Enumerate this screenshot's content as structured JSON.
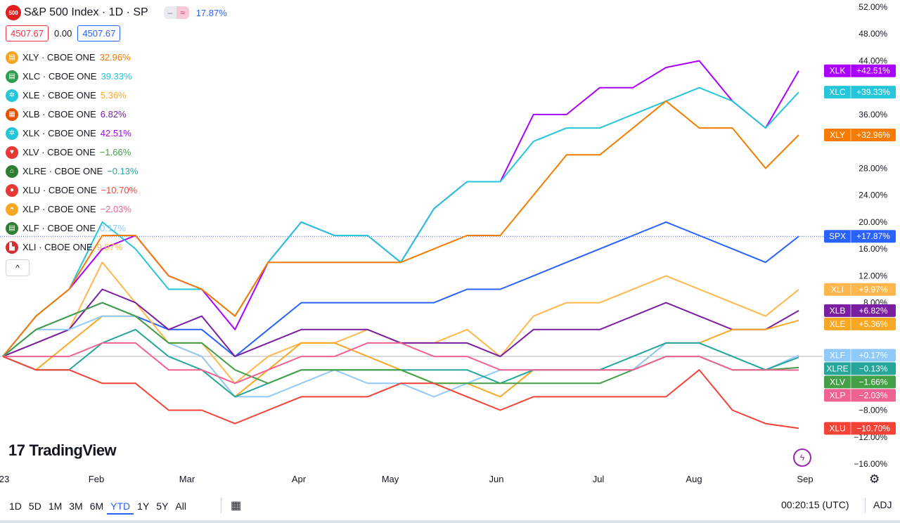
{
  "header": {
    "logo_text": "500",
    "title": "S&P 500 Index · 1D · SP",
    "toggle_a": "‒",
    "toggle_b": "≈",
    "change_pct": "17.87%"
  },
  "price_row": {
    "bid": "4507.67",
    "spread": "0.00",
    "ask": "4507.67"
  },
  "legend": [
    {
      "symbol": "XLY · CBOE ONE",
      "value": "32.96%",
      "color": "#f57c00",
      "icon": "cart-icon"
    },
    {
      "symbol": "XLC · CBOE ONE",
      "value": "39.33%",
      "color": "#26c6da",
      "icon": "chat-icon"
    },
    {
      "symbol": "XLE · CBOE ONE",
      "value": "5.36%",
      "color": "#f9a825",
      "icon": "flame-icon"
    },
    {
      "symbol": "XLB · CBOE ONE",
      "value": "6.82%",
      "color": "#7b1fa2",
      "icon": "cube-icon"
    },
    {
      "symbol": "XLK · CBOE ONE",
      "value": "42.51%",
      "color": "#aa00ff",
      "icon": "chip-icon"
    },
    {
      "symbol": "XLV · CBOE ONE",
      "value": "−1.66%",
      "color": "#43a047",
      "icon": "heart-icon"
    },
    {
      "symbol": "XLRE · CBOE ONE",
      "value": "−0.13%",
      "color": "#26a69a",
      "icon": "house-icon"
    },
    {
      "symbol": "XLU · CBOE ONE",
      "value": "−10.70%",
      "color": "#f44336",
      "icon": "bulb-icon"
    },
    {
      "symbol": "XLP · CBOE ONE",
      "value": "−2.03%",
      "color": "#f06292",
      "icon": "basket-icon"
    },
    {
      "symbol": "XLF · CBOE ONE",
      "value": "0.17%",
      "color": "#90caf9",
      "icon": "bank-icon"
    },
    {
      "symbol": "XLI · CBOE ONE",
      "value": "9.97%",
      "color": "#ffb74d",
      "icon": "factory-icon"
    }
  ],
  "legend_icon_colors": [
    "#f5a623",
    "#2e9d4d",
    "#26c6da",
    "#e65100",
    "#26c6da",
    "#e53935",
    "#2e7d32",
    "#e53935",
    "#f9a825",
    "#2e7d32",
    "#d32f2f"
  ],
  "collapse_label": "^",
  "brand": {
    "mark": "17",
    "name": "TradingView"
  },
  "bolt_icon": "ϟ",
  "chart_data": {
    "type": "line",
    "ylabel": "",
    "y_axis_unit": "%",
    "ylim": [
      -16,
      52
    ],
    "y_ticks": [
      -16,
      -12,
      -8,
      -4,
      0,
      4,
      8,
      12,
      16,
      20,
      24,
      28,
      32,
      36,
      40,
      44,
      48,
      52
    ],
    "y_tick_labels": [
      "−16.00%",
      "−12.00%",
      "−8.00%",
      "",
      "",
      "",
      "8.00%",
      "12.00%",
      "16.00%",
      "20.00%",
      "24.00%",
      "28.00%",
      "",
      "36.00%",
      "",
      "44.00%",
      "48.00%",
      "52.00%"
    ],
    "x_ticks": [
      "23",
      "Feb",
      "Mar",
      "Apr",
      "May",
      "Jun",
      "Jul",
      "Aug",
      "Sep"
    ],
    "x": [
      "Jan 3",
      "Jan 13",
      "Jan 23",
      "Feb 2",
      "Feb 12",
      "Feb 22",
      "Mar 3",
      "Mar 13",
      "Mar 23",
      "Apr 2",
      "Apr 12",
      "Apr 22",
      "May 2",
      "May 12",
      "May 22",
      "Jun 1",
      "Jun 11",
      "Jun 21",
      "Jul 1",
      "Jul 11",
      "Jul 21",
      "Jul 31",
      "Aug 10",
      "Aug 20",
      "Aug 30"
    ],
    "zero_line": 0,
    "series": [
      {
        "name": "XLK",
        "color": "#aa00ff",
        "last_label": "+42.51%",
        "values": [
          0,
          6,
          10,
          16,
          18,
          12,
          10,
          4,
          14,
          20,
          18,
          18,
          14,
          22,
          26,
          26,
          36,
          36,
          40,
          40,
          43,
          44,
          38,
          34,
          42.51
        ]
      },
      {
        "name": "XLC",
        "color": "#26c6da",
        "last_label": "+39.33%",
        "values": [
          0,
          6,
          10,
          20,
          16,
          10,
          10,
          6,
          14,
          20,
          18,
          18,
          14,
          22,
          26,
          26,
          32,
          34,
          34,
          36,
          38,
          40,
          38,
          34,
          39.33
        ]
      },
      {
        "name": "XLY",
        "color": "#f57c00",
        "last_label": "+32.96%",
        "values": [
          0,
          6,
          10,
          18,
          18,
          12,
          10,
          6,
          14,
          14,
          14,
          14,
          14,
          16,
          18,
          18,
          24,
          30,
          30,
          34,
          38,
          34,
          34,
          28,
          32.96
        ]
      },
      {
        "name": "SPX",
        "color": "#2962ff",
        "last_label": "+17.87%",
        "values": [
          0,
          4,
          6,
          8,
          6,
          4,
          4,
          0,
          4,
          8,
          8,
          8,
          8,
          8,
          10,
          10,
          12,
          14,
          16,
          18,
          20,
          18,
          16,
          14,
          17.87
        ]
      },
      {
        "name": "XLI",
        "color": "#ffb74d",
        "last_label": "+9.97%",
        "values": [
          0,
          2,
          4,
          14,
          8,
          2,
          2,
          -4,
          0,
          2,
          2,
          4,
          2,
          2,
          4,
          0,
          6,
          8,
          8,
          10,
          12,
          10,
          8,
          6,
          9.97
        ]
      },
      {
        "name": "XLB",
        "color": "#7b1fa2",
        "last_label": "+6.82%",
        "values": [
          0,
          2,
          4,
          10,
          8,
          4,
          6,
          0,
          2,
          4,
          4,
          4,
          2,
          2,
          2,
          0,
          4,
          4,
          4,
          6,
          8,
          6,
          4,
          4,
          6.82
        ]
      },
      {
        "name": "XLE",
        "color": "#f9a825",
        "last_label": "+5.36%",
        "values": [
          0,
          -2,
          2,
          6,
          6,
          2,
          0,
          -6,
          -2,
          2,
          2,
          0,
          -2,
          -4,
          -4,
          -6,
          -2,
          -2,
          -2,
          -2,
          2,
          2,
          4,
          4,
          5.36
        ]
      },
      {
        "name": "XLF",
        "color": "#90caf9",
        "last_label": "+0.17%",
        "values": [
          0,
          4,
          4,
          6,
          6,
          2,
          0,
          -6,
          -6,
          -4,
          -2,
          -4,
          -4,
          -6,
          -4,
          -2,
          -2,
          -2,
          -2,
          -2,
          2,
          2,
          0,
          -2,
          0.17
        ]
      },
      {
        "name": "XLRE",
        "color": "#26a69a",
        "last_label": "−0.13%",
        "values": [
          0,
          -2,
          -2,
          2,
          4,
          0,
          -2,
          -6,
          -4,
          -2,
          -2,
          -2,
          -2,
          -2,
          -2,
          -4,
          -2,
          -2,
          -2,
          0,
          2,
          2,
          0,
          -2,
          -0.13
        ]
      },
      {
        "name": "XLV",
        "color": "#43a047",
        "last_label": "−1.66%",
        "values": [
          0,
          4,
          6,
          8,
          6,
          2,
          2,
          -2,
          -4,
          -2,
          -2,
          -2,
          -2,
          -4,
          -4,
          -4,
          -4,
          -4,
          -4,
          -2,
          0,
          0,
          -2,
          -2,
          -1.66
        ]
      },
      {
        "name": "XLP",
        "color": "#f06292",
        "last_label": "−2.03%",
        "values": [
          0,
          0,
          0,
          2,
          2,
          -2,
          -2,
          -4,
          -2,
          0,
          0,
          2,
          2,
          0,
          0,
          -2,
          -2,
          -2,
          -2,
          -2,
          0,
          0,
          -2,
          -2,
          -2.03
        ]
      },
      {
        "name": "XLU",
        "color": "#f44336",
        "last_label": "−10.70%",
        "values": [
          0,
          -2,
          -2,
          -4,
          -4,
          -8,
          -8,
          -10,
          -8,
          -6,
          -6,
          -6,
          -4,
          -4,
          -6,
          -8,
          -6,
          -6,
          -6,
          -6,
          -6,
          -2,
          -8,
          -10,
          -10.7
        ]
      }
    ],
    "legend": "top-left",
    "grid": false
  },
  "bottom_bar": {
    "ranges": [
      "1D",
      "5D",
      "1M",
      "3M",
      "6M",
      "YTD",
      "1Y",
      "5Y",
      "All"
    ],
    "active_range": "YTD",
    "time": "00:20:15 (UTC)",
    "adj": "ADJ"
  }
}
